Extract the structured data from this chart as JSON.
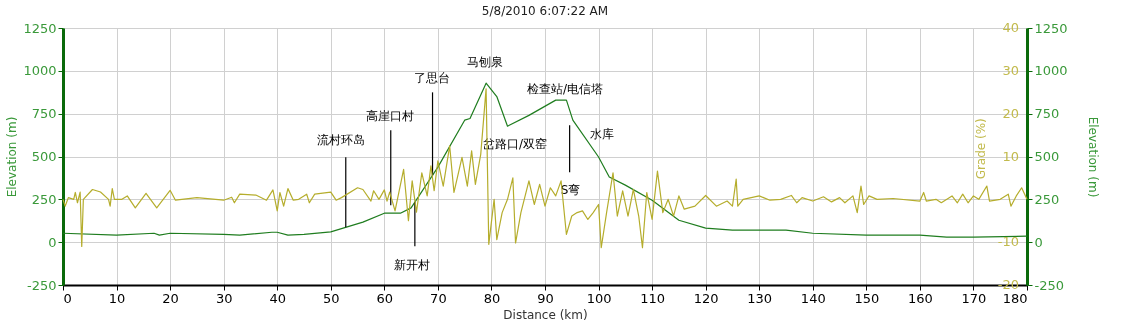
{
  "chart_data": {
    "type": "line",
    "title": "5/8/2010 6:07:22 AM",
    "xlabel": "Distance (km)",
    "ylabel": "Elevation (m)",
    "y2label": "Grade (%)",
    "xlim": [
      0,
      180
    ],
    "xticks": [
      0,
      10,
      20,
      30,
      40,
      50,
      60,
      70,
      80,
      90,
      100,
      110,
      120,
      130,
      140,
      150,
      160,
      170,
      180
    ],
    "ylim": [
      -250,
      1250
    ],
    "yticks": [
      -250,
      0,
      250,
      500,
      750,
      1000,
      1250
    ],
    "y2lim": [
      -20,
      40
    ],
    "y2ticks": [
      -20,
      -10,
      {
        "value": 0,
        "label": null
      },
      10,
      20,
      30,
      40
    ],
    "y3lim": [
      -250,
      1250
    ],
    "y3ticks": [
      -250,
      0,
      250,
      500,
      750,
      1000,
      1250
    ],
    "y3label": "Elevation (m)",
    "grid": true,
    "series": [
      {
        "name": null,
        "color": "#b5ad2c",
        "axis": "y2",
        "x": [
          0,
          0.4,
          1,
          2,
          2.3,
          2.7,
          3.2,
          3.5,
          3.8,
          5.5,
          7,
          8.5,
          8.8,
          9.2,
          9.6,
          11,
          12,
          13.5,
          15.5,
          17.5,
          20,
          21,
          25,
          30,
          31.5,
          32,
          33,
          36,
          38,
          39.2,
          40,
          40.5,
          41.2,
          42,
          43,
          44,
          45.5,
          46,
          47,
          50,
          51,
          52,
          55,
          56,
          57.5,
          58,
          59,
          60,
          60.5,
          61,
          62,
          63.6,
          64.5,
          65.2,
          66,
          67,
          68,
          68.7,
          69.3,
          70,
          71,
          72.2,
          73,
          74.5,
          75.5,
          76.3,
          77,
          78,
          79,
          79.5,
          80.5,
          81,
          82,
          83,
          84,
          84.5,
          85.5,
          87,
          88,
          89,
          90,
          91,
          92,
          93,
          94,
          95,
          96,
          97,
          98,
          99,
          100,
          100.5,
          101.5,
          102.7,
          103.5,
          104.5,
          105.5,
          106.5,
          107.5,
          108.2,
          109,
          110,
          111,
          112,
          113,
          114,
          115,
          116,
          118,
          120,
          122,
          124,
          125,
          125.7,
          126,
          127,
          130,
          132,
          134,
          136,
          137,
          138,
          140,
          142,
          143.5,
          145,
          146,
          147.5,
          148.3,
          149,
          149.5,
          150.5,
          152,
          155,
          160,
          160.7,
          161.2,
          163,
          164,
          166,
          167,
          168,
          169,
          170,
          171,
          172.5,
          173,
          175,
          176.5,
          177,
          178,
          179,
          180
        ],
        "values": [
          0,
          -1.6,
          0.4,
          0,
          1.6,
          -0.8,
          1.7,
          -11,
          0,
          2.3,
          1.7,
          0,
          -1.6,
          2.5,
          0,
          0,
          0.8,
          -2,
          1.4,
          -2,
          2.1,
          -0.2,
          0.4,
          -0.2,
          0.5,
          -0.8,
          1.2,
          1,
          -0.2,
          2.2,
          -2.7,
          1.6,
          -1.6,
          2.5,
          -0.2,
          0,
          1.2,
          -0.8,
          1.2,
          1.7,
          -0.2,
          0.4,
          2.7,
          2.3,
          -0.4,
          2,
          0,
          2.2,
          -0.4,
          1.7,
          -2.7,
          7,
          -5,
          4.3,
          -3,
          6.2,
          0.8,
          7.8,
          2,
          9,
          3.1,
          12.5,
          1.6,
          9.8,
          3.1,
          11.3,
          3.5,
          10.5,
          25.8,
          -10.5,
          0,
          -9.4,
          -3.1,
          0,
          5,
          -10.2,
          -3.1,
          4.3,
          -1.2,
          3.5,
          -1.6,
          2.7,
          0.8,
          4.3,
          -8.2,
          -3.9,
          -3.1,
          -2.7,
          -4.7,
          -3.1,
          -1.2,
          -11.3,
          -3.1,
          6.2,
          -3.9,
          2,
          -3.9,
          2.3,
          -3.9,
          -11.3,
          1.6,
          -4.7,
          6.6,
          -3.1,
          0,
          -3.9,
          0.8,
          -2.3,
          -1.6,
          0.9,
          -1.6,
          -0.4,
          -1.6,
          4.7,
          -1.6,
          0,
          0.8,
          -0.2,
          0,
          0.9,
          -0.8,
          0.4,
          -0.4,
          0.6,
          -0.6,
          0.4,
          -0.8,
          0.8,
          -3.1,
          3.1,
          -1.2,
          0.8,
          0,
          0.2,
          -0.4,
          1.6,
          -0.4,
          0,
          -0.8,
          0.8,
          -0.8,
          1.2,
          -0.8,
          0.8,
          0,
          3.1,
          -0.4,
          0,
          1.2,
          -1.6,
          0.8,
          2.7,
          0
        ]
      },
      {
        "name": null,
        "color": "#1f7d1f",
        "x": [
          0,
          10,
          17,
          18,
          20,
          30,
          33,
          39,
          40,
          42,
          45,
          50,
          56,
          60,
          63,
          65,
          70,
          75,
          76,
          79,
          81,
          83,
          87,
          92,
          94,
          95.2,
          100,
          102,
          105,
          110,
          115,
          120,
          125,
          130,
          135,
          140,
          150,
          160,
          165,
          170,
          180
        ],
        "values": [
          52,
          41,
          52,
          41,
          52,
          45,
          41,
          58,
          58,
          41,
          45,
          60,
          117,
          169,
          169,
          200,
          438,
          712,
          722,
          928,
          850,
          677,
          740,
          829,
          829,
          712,
          497,
          380,
          333,
          245,
          128,
          82,
          70,
          70,
          70,
          52,
          41,
          41,
          29,
          29,
          35
        ]
      }
    ],
    "annotations": [
      {
        "text": "流村环岛",
        "x": 52.8,
        "y": 87
      },
      {
        "text": "高崖口村",
        "x": 61.2,
        "y": 216
      },
      {
        "text": "了思台",
        "x": 69,
        "y": 390
      },
      "马刨泉",
      "检查站/电信塔",
      "岔路口/双窑",
      "水库",
      {
        "text": "S弯",
        "x": 94.6,
        "y": 683
      },
      {
        "text": "新开村",
        "x": 65.7,
        "y": 233
      }
    ]
  }
}
